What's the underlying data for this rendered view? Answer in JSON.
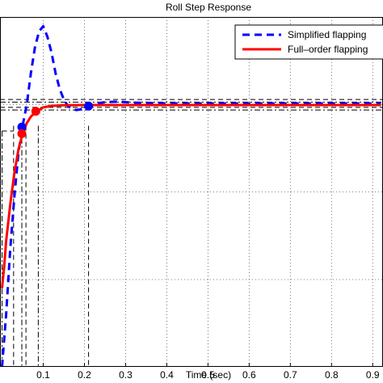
{
  "chart_data": {
    "type": "line",
    "title": "Roll Step Response",
    "xlabel": "Time (sec)",
    "xlim": [
      -0.005,
      0.925
    ],
    "ylim": [
      0.0,
      1.335
    ],
    "x_ticks": [
      0.1,
      0.2,
      0.3,
      0.4,
      0.5,
      0.6,
      0.7,
      0.8,
      0.9
    ],
    "x_tick_labels": [
      "0.1",
      "0.2",
      "0.3",
      "0.4",
      "0.5",
      "0.6",
      "0.7",
      "0.8",
      "0.9"
    ],
    "y_grid": [
      0.333,
      0.667,
      1.0,
      1.333
    ],
    "grid": true,
    "legend": {
      "position": "top-right",
      "entries": [
        "Simplified flapping",
        "Full–order flapping"
      ]
    },
    "series": [
      {
        "name": "Simplified flapping",
        "color": "#0000ff",
        "style": "dashed",
        "x": [
          0.0,
          0.01,
          0.02,
          0.03,
          0.04,
          0.05,
          0.06,
          0.07,
          0.08,
          0.09,
          0.1,
          0.11,
          0.12,
          0.13,
          0.14,
          0.15,
          0.16,
          0.17,
          0.18,
          0.19,
          0.2,
          0.21,
          0.23,
          0.25,
          0.28,
          0.32,
          0.4,
          0.5,
          0.6,
          0.7,
          0.8,
          0.9,
          0.92
        ],
        "y": [
          0.0,
          0.2,
          0.45,
          0.65,
          0.82,
          0.92,
          1.0,
          1.12,
          1.22,
          1.28,
          1.3,
          1.26,
          1.2,
          1.12,
          1.06,
          1.02,
          0.995,
          0.985,
          0.98,
          0.982,
          0.99,
          0.995,
          1.005,
          1.01,
          1.012,
          1.008,
          1.005,
          1.005,
          1.005,
          1.005,
          1.005,
          1.005,
          1.005
        ]
      },
      {
        "name": "Full–order flapping",
        "color": "#ff0000",
        "style": "solid",
        "x": [
          0.0,
          0.005,
          0.01,
          0.02,
          0.03,
          0.04,
          0.05,
          0.06,
          0.07,
          0.08,
          0.09,
          0.1,
          0.12,
          0.15,
          0.2,
          0.3,
          0.4,
          0.5,
          0.6,
          0.7,
          0.8,
          0.9,
          0.92
        ],
        "y": [
          0.3,
          0.38,
          0.48,
          0.62,
          0.74,
          0.83,
          0.89,
          0.93,
          0.955,
          0.97,
          0.98,
          0.99,
          0.996,
          0.998,
          0.999,
          0.999,
          0.999,
          0.999,
          0.999,
          0.999,
          0.999,
          0.999,
          0.999
        ]
      }
    ],
    "markers": [
      {
        "series": "Simplified flapping",
        "x": 0.048,
        "y": 0.915,
        "color": "#0000ff"
      },
      {
        "series": "Simplified flapping",
        "x": 0.21,
        "y": 0.995,
        "color": "#0000ff"
      },
      {
        "series": "Full–order flapping",
        "x": 0.048,
        "y": 0.89,
        "color": "#ff0000"
      },
      {
        "series": "Full–order flapping",
        "x": 0.082,
        "y": 0.975,
        "color": "#ff0000"
      }
    ],
    "reference_hlines": [
      0.98,
      0.99,
      1.01,
      1.02
    ],
    "reference_vlines": [
      0.0,
      0.028,
      0.048,
      0.058,
      0.088,
      0.21
    ]
  }
}
